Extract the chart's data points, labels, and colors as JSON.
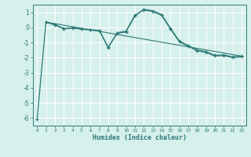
{
  "xlabel": "Humidex (Indice chaleur)",
  "background_color": "#d6f0ec",
  "grid_color": "#b8dcd8",
  "line_color": "#2d7a75",
  "spine_color": "#2d7a75",
  "xlim": [
    -0.5,
    23.5
  ],
  "ylim": [
    -6.5,
    1.5
  ],
  "yticks": [
    -6,
    -5,
    -4,
    -3,
    -2,
    -1,
    0,
    1
  ],
  "xticks": [
    0,
    1,
    2,
    3,
    4,
    5,
    6,
    7,
    8,
    9,
    10,
    11,
    12,
    13,
    14,
    15,
    16,
    17,
    18,
    19,
    20,
    21,
    22,
    23
  ],
  "line1_x": [
    0,
    1,
    2,
    3,
    4,
    5,
    6,
    7,
    8,
    9,
    10,
    11,
    12,
    13,
    14,
    15,
    16,
    17,
    18,
    19,
    20,
    21,
    22,
    23
  ],
  "line1_y": [
    -6.1,
    0.35,
    0.15,
    -0.1,
    -0.05,
    -0.12,
    -0.18,
    -0.22,
    -1.3,
    -0.4,
    -0.3,
    0.75,
    1.2,
    1.1,
    0.85,
    -0.05,
    -0.9,
    -1.2,
    -1.5,
    -1.6,
    -1.85,
    -1.82,
    -1.95,
    -1.9
  ],
  "line2_x": [
    1,
    2,
    3,
    4,
    5,
    6,
    7,
    8,
    9,
    10,
    11,
    12,
    13,
    14,
    15,
    16,
    17,
    18,
    19,
    20,
    21,
    22,
    23
  ],
  "line2_y": [
    0.35,
    0.2,
    -0.08,
    -0.03,
    -0.1,
    -0.15,
    -0.2,
    -1.35,
    -0.35,
    -0.25,
    0.8,
    1.15,
    1.05,
    0.8,
    -0.1,
    -0.95,
    -1.25,
    -1.55,
    -1.65,
    -1.9,
    -1.87,
    -2.0,
    -1.95
  ],
  "trend_x": [
    1,
    23
  ],
  "trend_y": [
    0.35,
    -1.9
  ]
}
